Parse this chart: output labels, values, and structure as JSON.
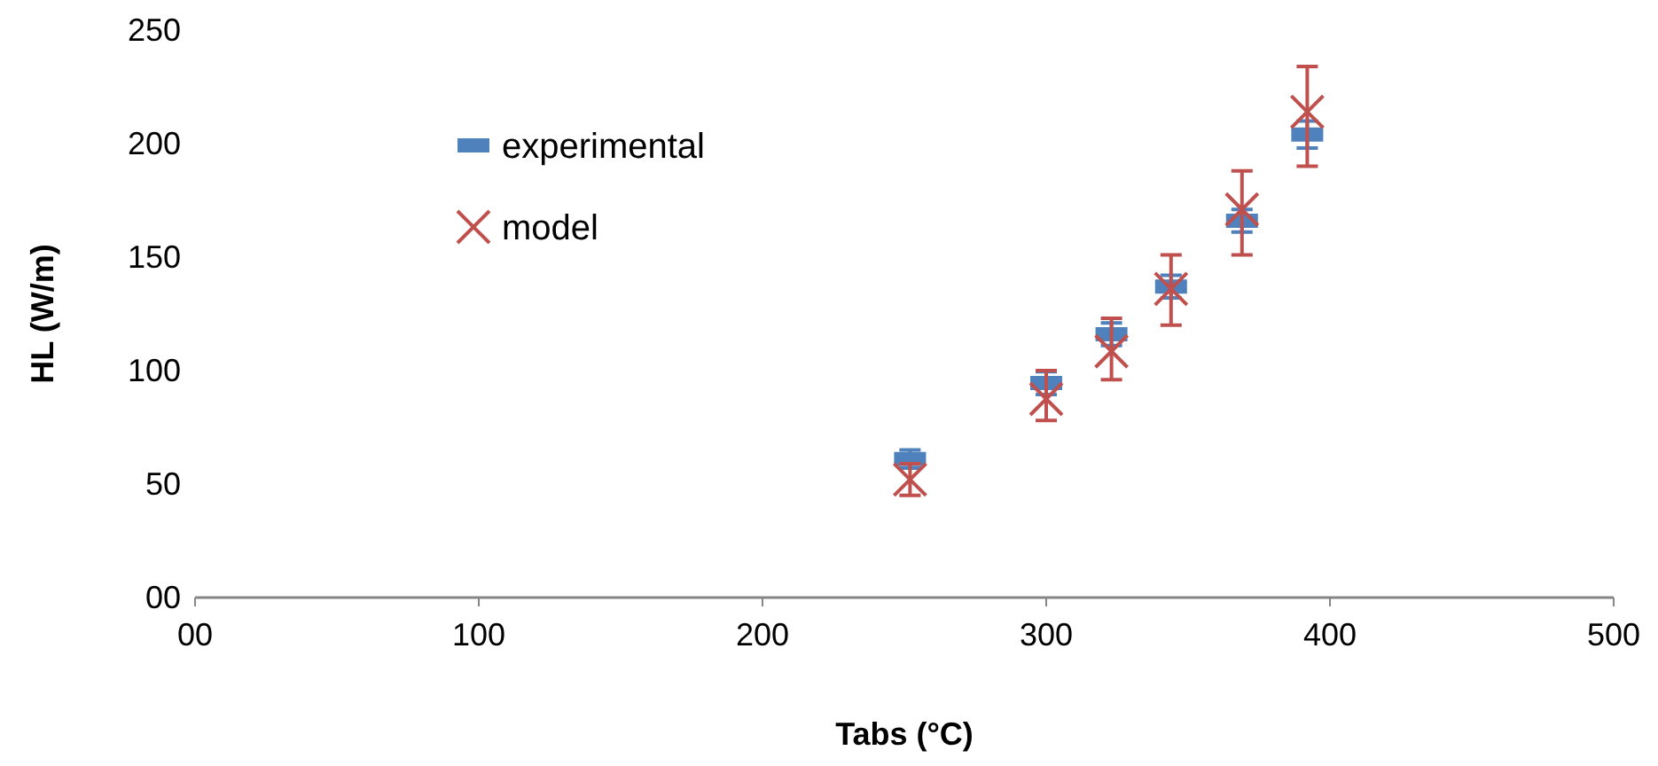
{
  "chart_data": {
    "type": "scatter",
    "xlabel": "Tabs (°C)",
    "ylabel": "HL (W/m)",
    "xlim": [
      0,
      500
    ],
    "ylim": [
      0,
      250
    ],
    "xticks": [
      {
        "value": 0,
        "label": "00"
      },
      100,
      200,
      300,
      400,
      500
    ],
    "yticks": [
      {
        "value": 0,
        "label": "00"
      },
      50,
      100,
      150,
      200,
      250
    ],
    "grid": false,
    "legend": "top left",
    "series": [
      {
        "name": "experimental",
        "color": "#4f81bd",
        "marker": "square",
        "x": [
          252,
          300,
          323,
          344,
          369,
          392
        ],
        "values": [
          61,
          94.5,
          116,
          137,
          166,
          204
        ],
        "errors": [
          4,
          5,
          5,
          5,
          5,
          6
        ]
      },
      {
        "name": "model",
        "color": "#c0504d",
        "marker": "cross",
        "x": [
          252,
          300,
          323,
          344,
          369,
          392
        ],
        "values": [
          52,
          87.5,
          108.5,
          136,
          171,
          214
        ],
        "errors": [
          [
            45,
            59
          ],
          [
            78,
            100
          ],
          [
            96,
            123
          ],
          [
            120,
            151
          ],
          [
            151,
            188
          ],
          [
            190,
            234
          ]
        ]
      }
    ]
  }
}
